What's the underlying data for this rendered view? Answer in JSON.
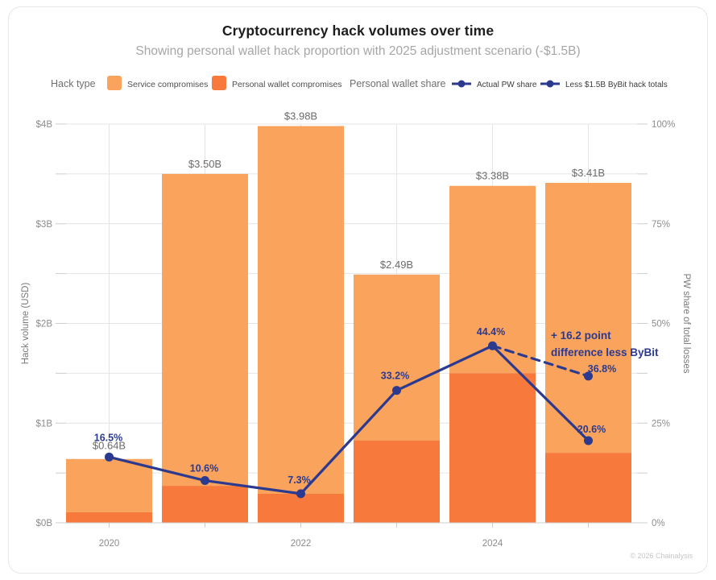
{
  "header": {
    "title": "Cryptocurrency hack volumes over time",
    "subtitle": "Showing personal wallet hack proportion with 2025 adjustment scenario (-$1.5B)"
  },
  "legend": {
    "hack_type_label": "Hack type",
    "service_label": "Service compromises",
    "personal_label": "Personal wallet compromises",
    "pw_share_label": "Personal wallet share",
    "actual_label": "Actual PW share",
    "adjusted_label": "Less $1.5B ByBit hack totals"
  },
  "colors": {
    "service": "#F9A35C",
    "personal": "#F8793C",
    "line": "#2B3A8F",
    "grid": "#e4e4e4",
    "axis_line": "#cccccc",
    "tick_text": "#8c8c8c",
    "axis_title": "#787878",
    "bar_label": "#6b6b6b"
  },
  "footer": {
    "copyright": "© 2026 Chainalysis"
  },
  "chart_data": {
    "type": "bar+line",
    "years": [
      2020,
      2021,
      2022,
      2023,
      2024,
      2025
    ],
    "x_axis_labeled_years": [
      2020,
      2022,
      2024
    ],
    "bar_totals_b": [
      0.64,
      3.5,
      3.98,
      2.49,
      3.38,
      3.41
    ],
    "bar_labels": [
      "$0.64B",
      "$3.50B",
      "$3.98B",
      "$2.49B",
      "$3.38B",
      "$3.41B"
    ],
    "personal_wallet_b": [
      0.106,
      0.371,
      0.291,
      0.827,
      1.501,
      0.702
    ],
    "pw_share_pct": [
      16.5,
      10.6,
      7.3,
      33.2,
      44.4,
      20.6
    ],
    "pw_share_labels": [
      "16.5%",
      "10.6%",
      "7.3%",
      "33.2%",
      "44.4%",
      "20.6%"
    ],
    "adjusted": {
      "from_year": 2024,
      "year": 2025,
      "value": 36.8,
      "label": "36.8%"
    },
    "annotation_lines": [
      "+ 16.2 point",
      "difference less ByBit"
    ],
    "ylabel_left": "Hack volume (USD)",
    "ylabel_right": "PW share of total losses",
    "yticks_left": [
      "$0B",
      "$1B",
      "$2B",
      "$3B",
      "$4B"
    ],
    "yticks_right": [
      "0%",
      "25%",
      "50%",
      "75%",
      "100%"
    ],
    "ylim_left_b": [
      0,
      4
    ],
    "ylim_right_pct": [
      0,
      100
    ],
    "grid": true,
    "legend_position": "top"
  }
}
